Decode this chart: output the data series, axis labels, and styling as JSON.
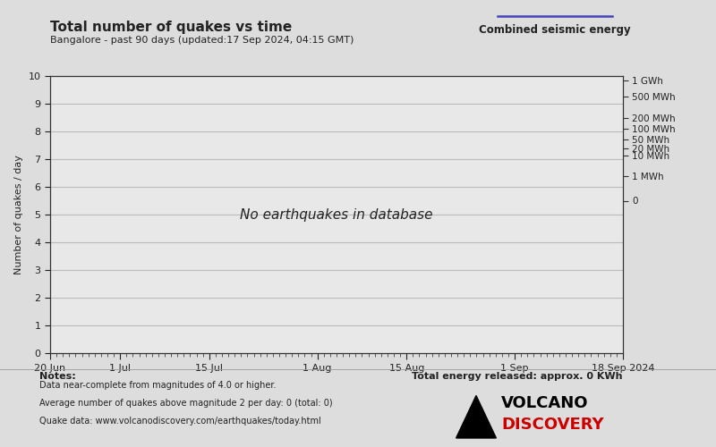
{
  "title": "Total number of quakes vs time",
  "subtitle": "Bangalore - past 90 days (updated:17 Sep 2024, 04:15 GMT)",
  "legend_label": "Combined seismic energy",
  "legend_line_color": "#4444bb",
  "no_data_text": "No earthquakes in database",
  "ylabel": "Number of quakes / day",
  "ylim": [
    0,
    10
  ],
  "yticks": [
    0,
    1,
    2,
    3,
    4,
    5,
    6,
    7,
    8,
    9,
    10
  ],
  "x_tick_labels": [
    "20 Jun",
    "1 Jul",
    "15 Jul",
    "1 Aug",
    "15 Aug",
    "1 Sep",
    "18 Sep 2024"
  ],
  "x_tick_days": [
    0,
    11,
    25,
    42,
    56,
    73,
    90
  ],
  "total_days": 90,
  "right_axis_labels": [
    "1 GWh",
    "500 MWh",
    "200 MWh",
    "100 MWh",
    "50 MWh",
    "20 MWh",
    "10 MWh",
    "1 MWh",
    "0"
  ],
  "right_axis_positions": [
    9.85,
    9.25,
    8.5,
    8.1,
    7.7,
    7.38,
    7.12,
    6.38,
    5.5
  ],
  "bg_color": "#dddddd",
  "plot_bg_color": "#e8e8e8",
  "grid_color": "#bbbbbb",
  "notes_title": "Notes:",
  "notes_lines": [
    "Data near-complete from magnitudes of 4.0 or higher.",
    "Average number of quakes above magnitude 2 per day: 0 (total: 0)",
    "Quake data: www.volcanodiscovery.com/earthquakes/today.html"
  ],
  "energy_text": "Total energy released: approx. 0 KWh",
  "tick_color": "#222222",
  "axis_color": "#333333",
  "font_color": "#222222"
}
